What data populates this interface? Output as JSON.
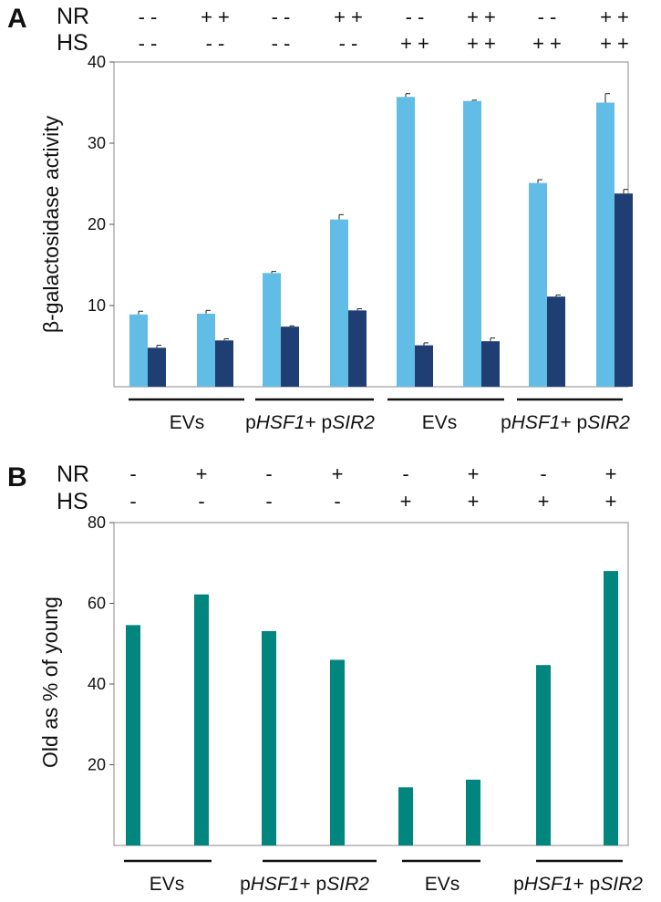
{
  "chart_data": [
    {
      "panel": "A",
      "type": "bar",
      "ylabel": "β-galactosidase activity",
      "ylim": [
        0,
        40
      ],
      "yticks": [
        "10",
        "20",
        "30",
        "40"
      ],
      "row_labels": [
        "NR",
        "HS"
      ],
      "conditions": [
        {
          "nr": "- -",
          "hs": "- -"
        },
        {
          "nr": "+ +",
          "hs": "- -"
        },
        {
          "nr": "- -",
          "hs": "- -"
        },
        {
          "nr": "+ +",
          "hs": "- -"
        },
        {
          "nr": "- -",
          "hs": "+ +"
        },
        {
          "nr": "+ +",
          "hs": "+ +"
        },
        {
          "nr": "- -",
          "hs": "+ +"
        },
        {
          "nr": "+ +",
          "hs": "+ +"
        }
      ],
      "series": [
        {
          "name": "light",
          "color": "#62bde6",
          "values": [
            8.9,
            9.0,
            14.0,
            20.6,
            35.7,
            35.2,
            25.1,
            35.0
          ],
          "errors": [
            0.4,
            0.4,
            0.2,
            0.6,
            0.4,
            0.1,
            0.4,
            1.1
          ]
        },
        {
          "name": "dark",
          "color": "#1f3e73",
          "values": [
            4.8,
            5.7,
            7.4,
            9.4,
            5.1,
            5.6,
            11.1,
            23.8
          ],
          "errors": [
            0.3,
            0.2,
            0.1,
            0.2,
            0.3,
            0.4,
            0.2,
            0.5
          ]
        }
      ],
      "groups": [
        {
          "plain": "EVs"
        },
        {
          "p1": "p",
          "i1": "HSF1",
          "mid": "+ p",
          "i2": "SIR2"
        },
        {
          "plain": "EVs"
        },
        {
          "p1": "p",
          "i1": "HSF1",
          "mid": "+ p",
          "i2": "SIR2"
        }
      ]
    },
    {
      "panel": "B",
      "type": "bar",
      "ylabel": "Old as % of young",
      "ylim": [
        0,
        80
      ],
      "yticks": [
        "20",
        "40",
        "60",
        "80"
      ],
      "row_labels": [
        "NR",
        "HS"
      ],
      "conditions": [
        {
          "nr": "-",
          "hs": "-"
        },
        {
          "nr": "+",
          "hs": "-"
        },
        {
          "nr": "-",
          "hs": "-"
        },
        {
          "nr": "+",
          "hs": "-"
        },
        {
          "nr": "-",
          "hs": "+"
        },
        {
          "nr": "+",
          "hs": "+"
        },
        {
          "nr": "-",
          "hs": "+"
        },
        {
          "nr": "+",
          "hs": "+"
        }
      ],
      "series": [
        {
          "name": "teal",
          "color": "#00857f",
          "values": [
            54.6,
            62.2,
            53.1,
            46.0,
            14.4,
            16.3,
            44.7,
            68.0
          ]
        }
      ],
      "groups": [
        {
          "plain": "EVs"
        },
        {
          "p1": "p",
          "i1": "HSF1",
          "mid": "+ p",
          "i2": "SIR2"
        },
        {
          "plain": "EVs"
        },
        {
          "p1": "p",
          "i1": "HSF1",
          "mid": "+ p",
          "i2": "SIR2"
        }
      ]
    }
  ]
}
